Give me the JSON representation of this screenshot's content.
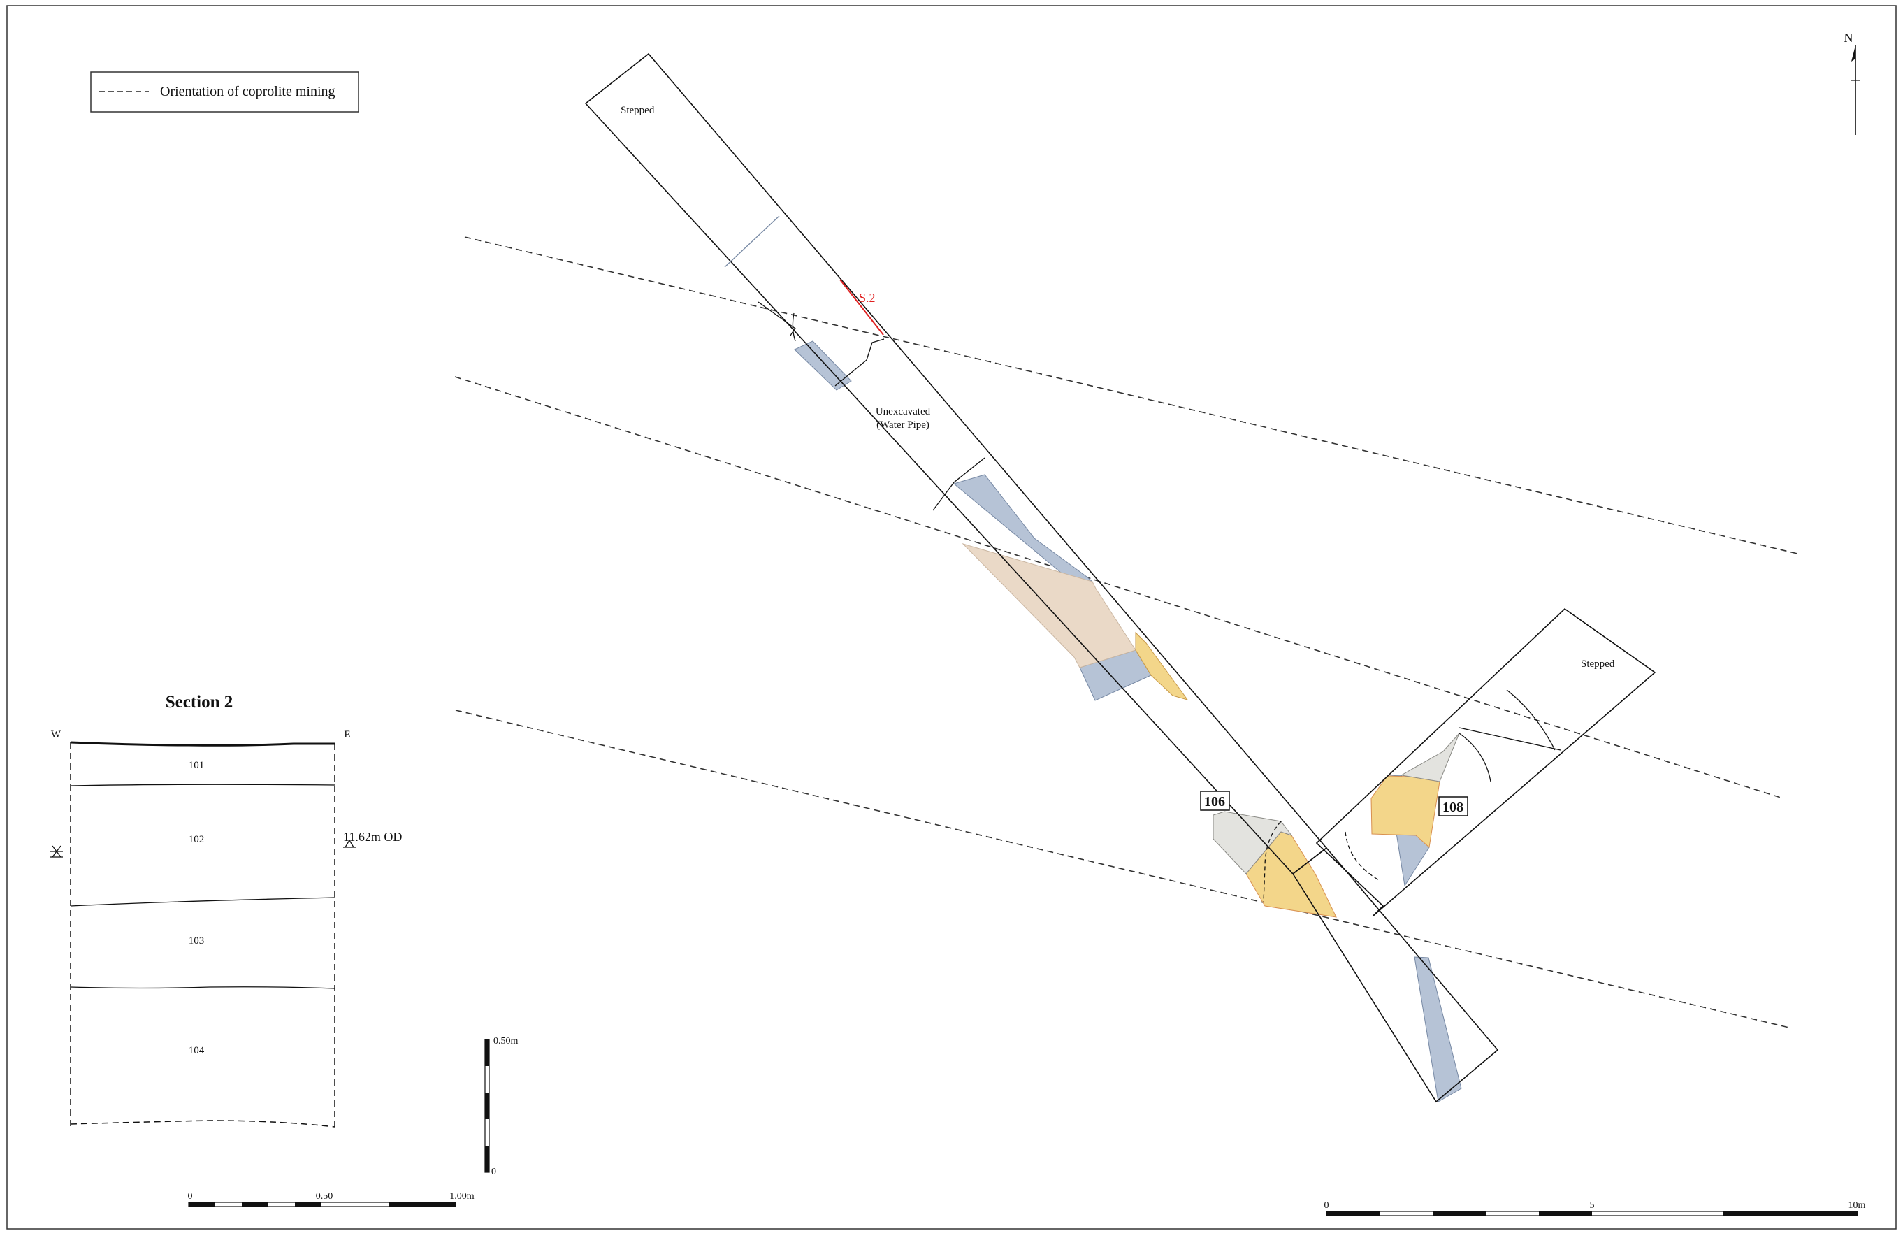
{
  "legend": {
    "line_label": "Orientation of coprolite mining"
  },
  "north": {
    "label": "N"
  },
  "plan": {
    "stepped_nw": "Stepped",
    "stepped_e": "Stepped",
    "section_label": "S.2",
    "unexcavated_line1": "Unexcavated",
    "unexcavated_line2": "(Water Pipe)",
    "feature_106": "106",
    "feature_108": "108"
  },
  "section": {
    "title": "Section 2",
    "west": "W",
    "east": "E",
    "datum": "11.62m OD",
    "layers": [
      "101",
      "102",
      "103",
      "104"
    ]
  },
  "scales": {
    "section_bar": {
      "start": "0",
      "mid": "0.50",
      "end": "1.00m"
    },
    "vertical_bar": {
      "top": "0.50m",
      "bottom": "0"
    },
    "plan_bar": {
      "start": "0",
      "mid": "5",
      "end": "10m"
    }
  },
  "colors": {
    "blue_fill": "#b6c3d6",
    "yellow_fill": "#f3d68a",
    "tan_fill": "#ead9c7",
    "grey_fill": "#e3e3df",
    "section_red": "#e02020",
    "outline": "#111111"
  }
}
